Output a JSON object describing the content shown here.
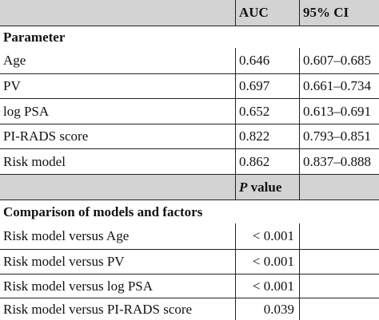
{
  "header": {
    "auc": "AUC",
    "ci": "95% CI"
  },
  "section1": {
    "title": "Parameter"
  },
  "params": [
    {
      "name": "Age",
      "auc": "0.646",
      "ci": "0.607–0.685"
    },
    {
      "name": "PV",
      "auc": "0.697",
      "ci": "0.661–0.734"
    },
    {
      "name": "log PSA",
      "auc": "0.652",
      "ci": "0.613–0.691"
    },
    {
      "name": "PI-RADS score",
      "auc": "0.822",
      "ci": "0.793–0.851"
    },
    {
      "name": "Risk model",
      "auc": "0.862",
      "ci": "0.837–0.888"
    }
  ],
  "header2": {
    "p_italic": "P",
    "p_rest": " value"
  },
  "section2": {
    "title": "Comparison of models and factors"
  },
  "comparisons": [
    {
      "name": "Risk model versus Age",
      "p": "< 0.001"
    },
    {
      "name": "Risk model versus PV",
      "p": "< 0.001"
    },
    {
      "name": "Risk model versus log PSA",
      "p": "< 0.001"
    },
    {
      "name": "Risk model versus PI-RADS score",
      "p": "0.039"
    }
  ]
}
